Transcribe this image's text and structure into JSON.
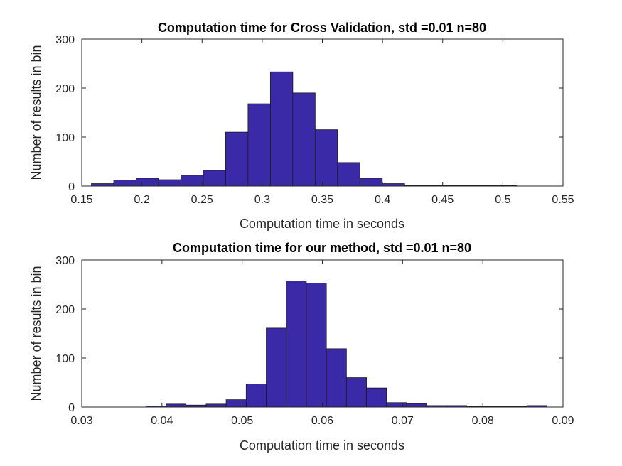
{
  "figure": {
    "bar_color": "#3A2AA8",
    "edge_color": "#1A1A1A"
  },
  "chart_data": [
    {
      "type": "bar",
      "title": "Computation time for Cross Validation, std =0.01 n=80",
      "xlabel": "Computation time in seconds",
      "ylabel": "Number of results in bin",
      "xlim": [
        0.15,
        0.55
      ],
      "ylim": [
        0,
        300
      ],
      "xticks": [
        0.15,
        0.2,
        0.25,
        0.3,
        0.35,
        0.4,
        0.45,
        0.5,
        0.55
      ],
      "xtick_labels": [
        "0.15",
        "0.2",
        "0.25",
        "0.3",
        "0.35",
        "0.4",
        "0.45",
        "0.5",
        "0.55"
      ],
      "yticks": [
        0,
        100,
        200,
        300
      ],
      "ytick_labels": [
        "0",
        "100",
        "200",
        "300"
      ],
      "grid": false,
      "bin_edges": [
        0.158,
        0.1766,
        0.1952,
        0.2138,
        0.2324,
        0.251,
        0.2696,
        0.2882,
        0.3068,
        0.3254,
        0.344,
        0.3626,
        0.3812,
        0.3998,
        0.4184,
        0.437,
        0.4556,
        0.4742,
        0.4928,
        0.5114,
        0.53
      ],
      "values": [
        5,
        12,
        16,
        13,
        22,
        32,
        110,
        168,
        233,
        190,
        115,
        48,
        16,
        5,
        1,
        1,
        1,
        1,
        1,
        0
      ]
    },
    {
      "type": "bar",
      "title": "Computation time for our method, std =0.01 n=80",
      "xlabel": "Computation time in seconds",
      "ylabel": "Number of results in bin",
      "xlim": [
        0.03,
        0.09
      ],
      "ylim": [
        0,
        300
      ],
      "xticks": [
        0.03,
        0.04,
        0.05,
        0.06,
        0.07,
        0.08,
        0.09
      ],
      "xtick_labels": [
        "0.03",
        "0.04",
        "0.05",
        "0.06",
        "0.07",
        "0.08",
        "0.09"
      ],
      "yticks": [
        0,
        100,
        200,
        300
      ],
      "ytick_labels": [
        "0",
        "100",
        "200",
        "300"
      ],
      "grid": false,
      "bin_edges": [
        0.038,
        0.0405,
        0.043,
        0.0455,
        0.048,
        0.0505,
        0.053,
        0.0555,
        0.058,
        0.0605,
        0.063,
        0.0655,
        0.068,
        0.0705,
        0.073,
        0.0755,
        0.078,
        0.0805,
        0.083,
        0.0855,
        0.088
      ],
      "values": [
        2,
        6,
        4,
        6,
        15,
        47,
        161,
        257,
        253,
        119,
        60,
        39,
        9,
        7,
        3,
        3,
        1,
        1,
        1,
        3
      ]
    }
  ]
}
